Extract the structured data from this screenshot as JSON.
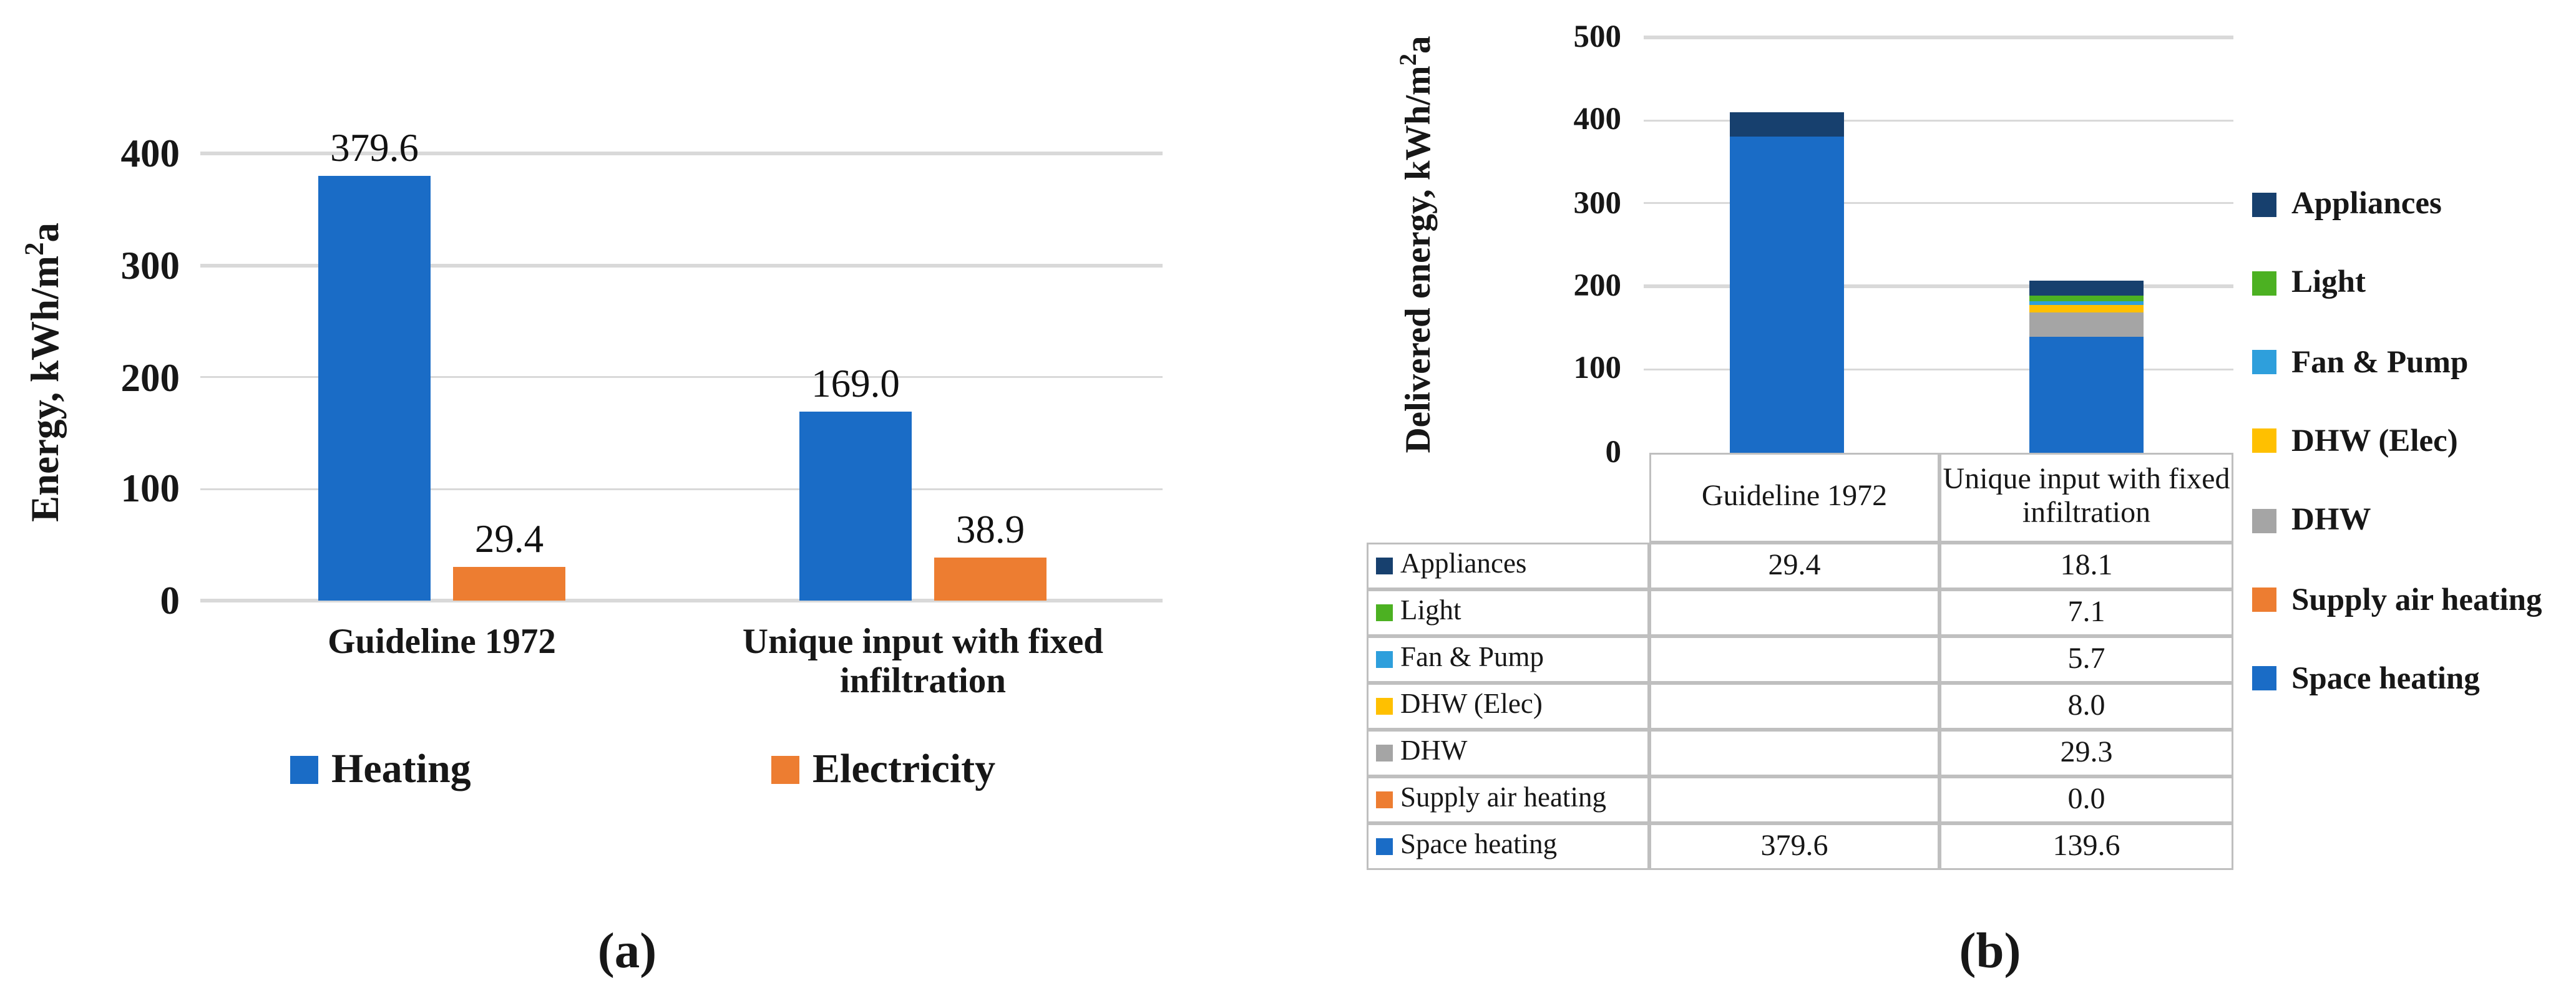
{
  "figure": {
    "caption_a": "(a)",
    "caption_b": "(b)"
  },
  "chart_data": [
    {
      "type": "bar",
      "title": "",
      "ylabel": "Energy, kWh/m2a",
      "ylabel_prefix": "Energy, kWh/m",
      "ylabel_sup": "2",
      "ylabel_suffix": "a",
      "ylim": [
        0,
        400
      ],
      "yticks": [
        0,
        100,
        200,
        300,
        400
      ],
      "grid": true,
      "legend_position": "bottom",
      "categories": [
        "Guideline 1972",
        "Unique input with fixed infiltration"
      ],
      "series": [
        {
          "name": "Heating",
          "color": "#1A6CC6",
          "values": [
            379.6,
            169.0
          ],
          "labels": [
            "379.6",
            "169.0"
          ]
        },
        {
          "name": "Electricity",
          "color": "#ED7D31",
          "values": [
            29.4,
            38.9
          ],
          "labels": [
            "29.4",
            "38.9"
          ]
        }
      ]
    },
    {
      "type": "stacked-bar",
      "title": "",
      "ylabel": "Delivered energy, kWh/m2a",
      "ylabel_prefix": "Delivered energy, kWh/m",
      "ylabel_sup": "2",
      "ylabel_suffix": "a",
      "ylim": [
        0,
        500
      ],
      "yticks": [
        0,
        100,
        200,
        300,
        400,
        500
      ],
      "grid": true,
      "legend_position": "right",
      "categories": [
        "Guideline 1972",
        "Unique input with fixed infiltration"
      ],
      "series_bottom_to_top": [
        {
          "name": "Space heating",
          "color": "#1A6CC6",
          "values": [
            379.6,
            139.6
          ]
        },
        {
          "name": "Supply air heating",
          "color": "#ED7D31",
          "values": [
            0,
            0.0
          ]
        },
        {
          "name": "DHW",
          "color": "#A5A5A5",
          "values": [
            0,
            29.3
          ]
        },
        {
          "name": "DHW (Elec)",
          "color": "#FFC000",
          "values": [
            0,
            8.0
          ]
        },
        {
          "name": "Fan & Pump",
          "color": "#2E9FDC",
          "values": [
            0,
            5.7
          ]
        },
        {
          "name": "Light",
          "color": "#4CB122",
          "values": [
            0,
            7.1
          ]
        },
        {
          "name": "Appliances",
          "color": "#17406E",
          "values": [
            29.4,
            18.1
          ]
        }
      ],
      "legend_order_top_to_bottom": [
        "Appliances",
        "Light",
        "Fan & Pump",
        "DHW (Elec)",
        "DHW",
        "Supply air heating",
        "Space heating"
      ],
      "table": {
        "column_headers": [
          "Guideline 1972",
          "Unique input with fixed infiltration"
        ],
        "rows": [
          {
            "label": "Appliances",
            "values": [
              "29.4",
              "18.1"
            ]
          },
          {
            "label": "Light",
            "values": [
              "",
              "7.1"
            ]
          },
          {
            "label": "Fan & Pump",
            "values": [
              "",
              "5.7"
            ]
          },
          {
            "label": "DHW (Elec)",
            "values": [
              "",
              "8.0"
            ]
          },
          {
            "label": "DHW",
            "values": [
              "",
              "29.3"
            ]
          },
          {
            "label": "Supply air heating",
            "values": [
              "",
              "0.0"
            ]
          },
          {
            "label": "Space heating",
            "values": [
              "379.6",
              "139.6"
            ]
          }
        ]
      }
    }
  ]
}
